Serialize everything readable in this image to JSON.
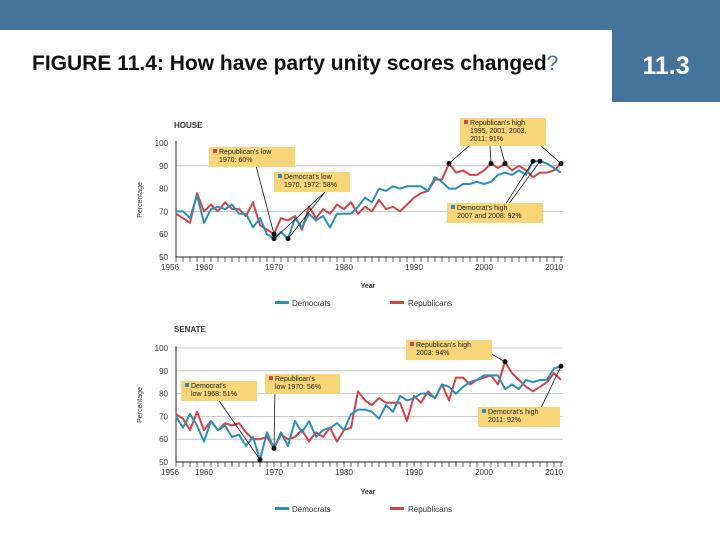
{
  "header": {
    "title": "FIGURE 11.4: How have party unity scores changed",
    "title_punct": "?",
    "section_badge": "11.3",
    "bar_color": "#44739b"
  },
  "colors": {
    "democrats": "#2b8fb8",
    "republicans": "#d0444a",
    "annotation_bg": "#f9d57a",
    "grid": "#bbbbbb"
  },
  "legend": {
    "democrats": "Democrats",
    "republicans": "Republicans"
  },
  "chart_data": [
    {
      "type": "line",
      "title": "HOUSE",
      "xlabel": "Year",
      "ylabel": "Percentage",
      "ylim": [
        50,
        100
      ],
      "yticks": [
        50,
        60,
        70,
        80,
        90,
        100
      ],
      "xticks": [
        "1956",
        "1960",
        "1970",
        "1980",
        "1990",
        "2000",
        "2010"
      ],
      "grid": "horizontal at 70 and 90",
      "legend_position": "bottom",
      "x": [
        1956,
        1957,
        1958,
        1959,
        1960,
        1961,
        1962,
        1963,
        1964,
        1965,
        1966,
        1967,
        1968,
        1969,
        1970,
        1971,
        1972,
        1973,
        1974,
        1975,
        1976,
        1977,
        1978,
        1979,
        1980,
        1981,
        1982,
        1983,
        1984,
        1985,
        1986,
        1987,
        1988,
        1989,
        1990,
        1991,
        1992,
        1993,
        1994,
        1995,
        1996,
        1997,
        1998,
        1999,
        2000,
        2001,
        2002,
        2003,
        2004,
        2005,
        2006,
        2007,
        2008,
        2009,
        2010,
        2011
      ],
      "series": [
        {
          "name": "Democrats",
          "values": [
            70,
            70,
            67,
            77,
            65,
            71,
            72,
            71,
            73,
            69,
            69,
            63,
            67,
            60,
            58,
            61,
            58,
            67,
            63,
            69,
            66,
            68,
            63,
            69,
            69,
            69,
            72,
            76,
            74,
            80,
            79,
            81,
            80,
            81,
            81,
            81,
            79,
            85,
            83,
            80,
            80,
            82,
            82,
            83,
            82,
            83,
            86,
            87,
            86,
            88,
            86,
            92,
            92,
            91,
            89,
            87
          ]
        },
        {
          "name": "Republicans",
          "values": [
            69,
            67,
            65,
            78,
            70,
            73,
            70,
            74,
            71,
            71,
            68,
            74,
            64,
            62,
            60,
            67,
            66,
            68,
            62,
            72,
            67,
            71,
            69,
            73,
            71,
            74,
            69,
            72,
            70,
            75,
            71,
            72,
            70,
            73,
            76,
            78,
            79,
            84,
            84,
            91,
            87,
            88,
            86,
            86,
            88,
            91,
            89,
            91,
            88,
            90,
            88,
            85,
            87,
            87,
            88,
            91
          ]
        }
      ],
      "annotations": [
        {
          "text_1": "Republican's low",
          "text_2": "1970: 60%",
          "party": "Republicans"
        },
        {
          "text_1": "Democrat's low",
          "text_2": "1970, 1972: 58%",
          "party": "Democrats"
        },
        {
          "text_1": "Republican's high",
          "text_2": "1995, 2001, 2003,",
          "text_3": "2011: 91%",
          "party": "Republicans"
        },
        {
          "text_1": "Democrat's high",
          "text_2": "2007 and 2008: 92%",
          "party": "Democrats"
        }
      ]
    },
    {
      "type": "line",
      "title": "SENATE",
      "xlabel": "Year",
      "ylabel": "Percentage",
      "ylim": [
        50,
        100
      ],
      "yticks": [
        50,
        60,
        70,
        80,
        90,
        100
      ],
      "xticks": [
        "1956",
        "1960",
        "1970",
        "1980",
        "1990",
        "2000",
        "2010"
      ],
      "grid": "horizontal at 60, 70, 80, 90, 100",
      "legend_position": "bottom",
      "x": [
        1956,
        1957,
        1958,
        1959,
        1960,
        1961,
        1962,
        1963,
        1964,
        1965,
        1966,
        1967,
        1968,
        1969,
        1970,
        1971,
        1972,
        1973,
        1974,
        1975,
        1976,
        1977,
        1978,
        1979,
        1980,
        1981,
        1982,
        1983,
        1984,
        1985,
        1986,
        1987,
        1988,
        1989,
        1990,
        1991,
        1992,
        1993,
        1994,
        1995,
        1996,
        1997,
        1998,
        1999,
        2000,
        2001,
        2002,
        2003,
        2004,
        2005,
        2006,
        2007,
        2008,
        2009,
        2010,
        2011
      ],
      "series": [
        {
          "name": "Democrats",
          "values": [
            70,
            65,
            71,
            66,
            59,
            68,
            64,
            66,
            61,
            62,
            57,
            61,
            51,
            63,
            56,
            63,
            57,
            68,
            63,
            68,
            61,
            64,
            65,
            67,
            64,
            71,
            73,
            73,
            72,
            69,
            75,
            72,
            79,
            77,
            78,
            80,
            80,
            78,
            84,
            83,
            80,
            83,
            85,
            86,
            88,
            88,
            88,
            82,
            84,
            82,
            86,
            85,
            86,
            86,
            91,
            92
          ]
        },
        {
          "name": "Republicans",
          "values": [
            71,
            69,
            64,
            72,
            64,
            68,
            64,
            67,
            66,
            67,
            63,
            60,
            60,
            61,
            56,
            62,
            60,
            61,
            64,
            59,
            63,
            61,
            65,
            59,
            64,
            65,
            81,
            77,
            75,
            78,
            76,
            76,
            76,
            68,
            79,
            76,
            81,
            78,
            84,
            77,
            87,
            87,
            84,
            86,
            87,
            88,
            84,
            94,
            89,
            86,
            83,
            81,
            83,
            85,
            89,
            86
          ]
        }
      ],
      "annotations": [
        {
          "text_1": "Democrat's",
          "text_2": "low 1968: 51%",
          "party": "Democrats"
        },
        {
          "text_1": "Republican's",
          "text_2": "low 1970: 56%",
          "party": "Republicans"
        },
        {
          "text_1": "Republican's high",
          "text_2": "2003: 94%",
          "party": "Republicans"
        },
        {
          "text_1": "Democrat's high",
          "text_2": "2011: 92%",
          "party": "Democrats"
        }
      ]
    }
  ]
}
